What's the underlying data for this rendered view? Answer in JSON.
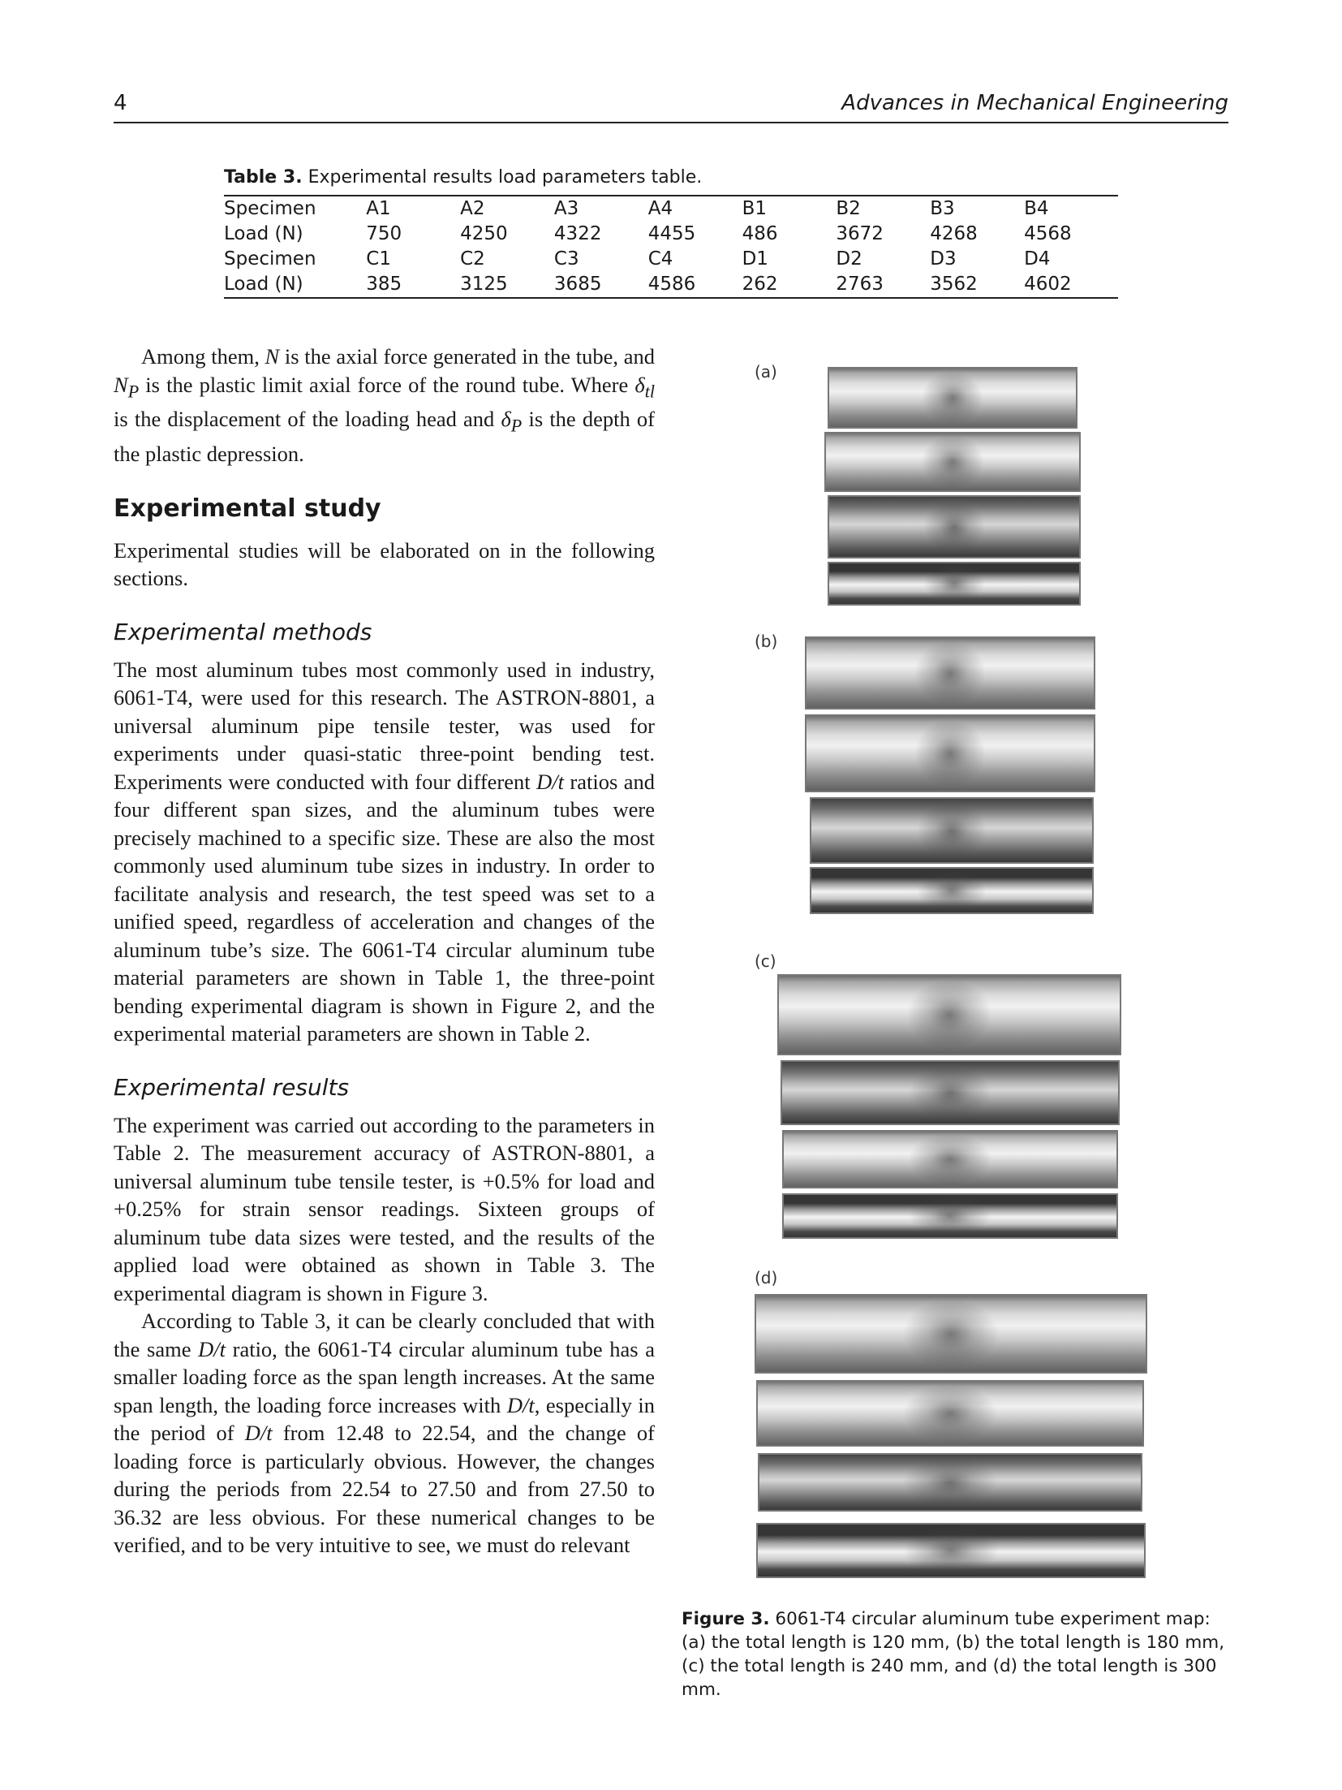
{
  "header": {
    "page_number": "4",
    "journal": "Advances in Mechanical Engineering"
  },
  "table3": {
    "label": "Table 3.",
    "title": "Experimental results load parameters table.",
    "rows": [
      [
        "Specimen",
        "A1",
        "A2",
        "A3",
        "A4",
        "B1",
        "B2",
        "B3",
        "B4"
      ],
      [
        "Load (N)",
        "750",
        "4250",
        "4322",
        "4455",
        "486",
        "3672",
        "4268",
        "4568"
      ],
      [
        "Specimen",
        "C1",
        "C2",
        "C3",
        "C4",
        "D1",
        "D2",
        "D3",
        "D4"
      ],
      [
        "Load (N)",
        "385",
        "3125",
        "3685",
        "4586",
        "262",
        "2763",
        "3562",
        "4602"
      ]
    ]
  },
  "body": {
    "intro_p": {
      "t1": "Among them, ",
      "v1": "N",
      "t2": " is the axial force generated in the tube, and ",
      "v2": "N",
      "v2sub": "P",
      "t3": " is the plastic limit axial force of the round tube. Where ",
      "v3": "δ",
      "v3sub": "tl",
      "t4": " is the displacement of the loading head and ",
      "v4": "δ",
      "v4sub": "P",
      "t5": " is the depth of the plastic depression."
    },
    "h_experimental_study": "Experimental study",
    "study_p": "Experimental studies will be elaborated on in the following sections.",
    "h_methods": "Experimental methods",
    "methods_p": {
      "t1": "The most aluminum tubes most commonly used in industry, 6061-T4, were used for this research. The ASTRON-8801, a universal aluminum pipe tensile tester, was used for experiments under quasi-static three-point bending test. Experiments were conducted with four different ",
      "v1": "D/t",
      "t2": " ratios and four different span sizes, and the aluminum tubes were precisely machined to a specific size. These are also the most commonly used aluminum tube sizes in industry. In order to facilitate analysis and research, the test speed was set to a unified speed, regardless of acceleration and changes of the aluminum tube’s size. The 6061-T4 circular aluminum tube material parameters are shown in Table 1, the three-point bending experimental diagram is shown in Figure 2, and the experimental material parameters are shown in Table 2."
    },
    "h_results": "Experimental results",
    "results_p1": "The experiment was carried out according to the parameters in Table 2. The measurement accuracy of ASTRON-8801, a universal aluminum tube tensile tester, is +0.5% for load and +0.25% for strain sensor readings. Sixteen groups of aluminum tube data sizes were tested, and the results of the applied load were obtained as shown in Table 3. The experimental diagram is shown in Figure 3.",
    "results_p2": {
      "t1": "According to Table 3, it can be clearly concluded that with the same ",
      "v1": "D/t",
      "t2": " ratio, the 6061-T4 circular aluminum tube has a smaller loading force as the span length increases. At the same span length, the loading force increases with ",
      "v2": "D/t",
      "t3": ", especially in the period of ",
      "v3": "D/t",
      "t4": " from 12.48 to 22.54, and the change of loading force is particularly obvious. However, the changes during the periods from 22.54 to 27.50 and from 27.50 to 36.32 are less obvious. For these numerical changes to be verified, and to be very intuitive to see, we must do relevant"
    }
  },
  "figure3": {
    "panel_labels": [
      "(a)",
      "(b)",
      "(c)",
      "(d)"
    ],
    "caption_label": "Figure 3.",
    "caption_text": "6061-T4 circular aluminum tube experiment map: (a) the total length is 120 mm, (b) the total length is 180 mm, (c) the total length is 240 mm, and (d) the total length is 300 mm."
  }
}
